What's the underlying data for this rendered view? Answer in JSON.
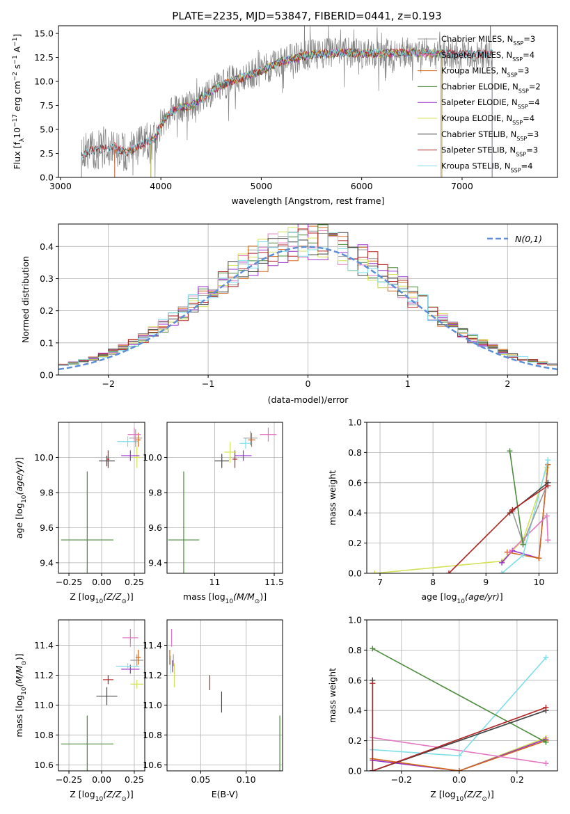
{
  "figure_title": "PLATE=2235, MJD=53847, FIBERID=0441, z=0.193",
  "colors": {
    "Chabrier MILES": "#9a9a9a",
    "Salpeter MILES": "#e377c2",
    "Kroupa MILES": "#d2691e",
    "Chabrier ELODIE": "#4b8b3b",
    "Salpeter ELODIE": "#9932cc",
    "Kroupa ELODIE": "#d4e157",
    "Chabrier STELIB": "#444444",
    "Salpeter STELIB": "#b22222",
    "Kroupa STELIB": "#80deea",
    "normal": "#5b8ed6"
  },
  "chart_data": [
    {
      "id": "spectrum",
      "type": "line",
      "xlabel": "wavelength [Angstrom, rest frame]",
      "ylabel": "Flux [f_λ 10^-17 erg cm^-2 s^-1 A^-1]",
      "xlim": [
        2980,
        7950
      ],
      "ylim": [
        0,
        15.8
      ],
      "xticks": [
        3000,
        4000,
        5000,
        6000,
        7000
      ],
      "yticks": [
        0.0,
        2.5,
        5.0,
        7.5,
        10.0,
        12.5,
        15.0
      ],
      "grid": false,
      "legend_position": "top-right",
      "series": [
        {
          "name": "Chabrier MILES, N_SSP=3",
          "label": "Chabrier MILES",
          "nssp": "3"
        },
        {
          "name": "Salpeter MILES, N_SSP=4",
          "label": "Salpeter MILES",
          "nssp": "4"
        },
        {
          "name": "Kroupa MILES, N_SSP=3",
          "label": "Kroupa MILES",
          "nssp": "3"
        },
        {
          "name": "Chabrier ELODIE, N_SSP=2",
          "label": "Chabrier ELODIE",
          "nssp": "2"
        },
        {
          "name": "Salpeter ELODIE, N_SSP=4",
          "label": "Salpeter ELODIE",
          "nssp": "4"
        },
        {
          "name": "Kroupa ELODIE, N_SSP=4",
          "label": "Kroupa ELODIE",
          "nssp": "4"
        },
        {
          "name": "Chabrier STELIB, N_SSP=3",
          "label": "Chabrier STELIB",
          "nssp": "3"
        },
        {
          "name": "Salpeter STELIB, N_SSP=3",
          "label": "Salpeter STELIB",
          "nssp": "3"
        },
        {
          "name": "Kroupa STELIB, N_SSP=4",
          "label": "Kroupa STELIB",
          "nssp": "4"
        }
      ],
      "continuum": [
        [
          3210,
          2.3
        ],
        [
          3300,
          2.8
        ],
        [
          3450,
          3.0
        ],
        [
          3540,
          3.2
        ],
        [
          3650,
          2.6
        ],
        [
          3750,
          3.1
        ],
        [
          3870,
          3.7
        ],
        [
          3940,
          4.0
        ],
        [
          4000,
          5.5
        ],
        [
          4100,
          6.8
        ],
        [
          4200,
          7.3
        ],
        [
          4300,
          7.4
        ],
        [
          4450,
          8.6
        ],
        [
          4600,
          9.6
        ],
        [
          4800,
          10.4
        ],
        [
          5000,
          11.1
        ],
        [
          5200,
          12.1
        ],
        [
          5500,
          12.8
        ],
        [
          5800,
          13.0
        ],
        [
          6100,
          12.9
        ],
        [
          6400,
          13.0
        ],
        [
          6800,
          12.9
        ],
        [
          7100,
          12.8
        ],
        [
          7300,
          12.9
        ]
      ]
    },
    {
      "id": "residuals",
      "type": "line",
      "xlabel": "(data-model)/error",
      "ylabel": "Normed distribution",
      "xlim": [
        -2.5,
        2.5
      ],
      "ylim": [
        0,
        0.47
      ],
      "xticks": [
        -2,
        -1,
        0,
        1,
        2
      ],
      "yticks": [
        0.0,
        0.1,
        0.2,
        0.3,
        0.4
      ],
      "grid": true,
      "legend_position": "top-right",
      "legend_label": "N(0,1)"
    },
    {
      "id": "age_vs_Z",
      "type": "scatter",
      "xlabel": "Z [log10(Z/Z☉)]",
      "ylabel": "age [log10(age/yr)]",
      "xlim": [
        -0.33,
        0.33
      ],
      "ylim": [
        9.34,
        10.2
      ],
      "xticks": [
        -0.25,
        0.0,
        0.25
      ],
      "xtick_labels": [
        "−0.25",
        "0.00",
        "0.25"
      ],
      "yticks": [
        9.4,
        9.6,
        9.8,
        10.0
      ],
      "grid": true,
      "points": [
        {
          "series": "Chabrier ELODIE",
          "x": -0.11,
          "y": 9.53,
          "xerr": 0.2,
          "yerr": 0.39
        },
        {
          "series": "Chabrier STELIB",
          "x": 0.04,
          "y": 9.98,
          "xerr": 0.06,
          "yerr": 0.03
        },
        {
          "series": "Salpeter STELIB",
          "x": 0.05,
          "y": 9.99,
          "xerr": 0.01,
          "yerr": 0.05
        },
        {
          "series": "Kroupa ELODIE",
          "x": 0.27,
          "y": 10.0,
          "xerr": 0.03,
          "yerr": 0.06
        },
        {
          "series": "Salpeter ELODIE",
          "x": 0.22,
          "y": 10.01,
          "xerr": 0.07,
          "yerr": 0.03
        },
        {
          "series": "Kroupa STELIB",
          "x": 0.2,
          "y": 10.09,
          "xerr": 0.08,
          "yerr": 0.03
        },
        {
          "series": "Chabrier MILES",
          "x": 0.26,
          "y": 10.11,
          "xerr": 0.05,
          "yerr": 0.05
        },
        {
          "series": "Kroupa MILES",
          "x": 0.28,
          "y": 10.1,
          "xerr": 0.02,
          "yerr": 0.04
        },
        {
          "series": "Salpeter MILES",
          "x": 0.25,
          "y": 10.13,
          "xerr": 0.05,
          "yerr": 0.04
        }
      ]
    },
    {
      "id": "age_vs_mass",
      "type": "scatter",
      "xlabel": "mass [log10(M/M☉)]",
      "ylabel": "",
      "xlim": [
        10.6,
        11.57
      ],
      "ylim": [
        9.34,
        10.2
      ],
      "xticks": [
        11.0,
        11.5
      ],
      "yticks": [
        9.4,
        9.6,
        9.8,
        10.0
      ],
      "grid": true,
      "points": [
        {
          "series": "Chabrier ELODIE",
          "x": 10.74,
          "y": 9.53,
          "xerr": 0.13,
          "yerr": 0.39
        },
        {
          "series": "Chabrier STELIB",
          "x": 11.06,
          "y": 9.98,
          "xerr": 0.06,
          "yerr": 0.04
        },
        {
          "series": "Salpeter STELIB",
          "x": 11.17,
          "y": 9.99,
          "xerr": 0.02,
          "yerr": 0.05
        },
        {
          "series": "Kroupa ELODIE",
          "x": 11.13,
          "y": 10.03,
          "xerr": 0.05,
          "yerr": 0.06
        },
        {
          "series": "Salpeter ELODIE",
          "x": 11.24,
          "y": 10.01,
          "xerr": 0.07,
          "yerr": 0.03
        },
        {
          "series": "Kroupa STELIB",
          "x": 11.26,
          "y": 10.08,
          "xerr": 0.05,
          "yerr": 0.03
        },
        {
          "series": "Chabrier MILES",
          "x": 11.3,
          "y": 10.11,
          "xerr": 0.06,
          "yerr": 0.04
        },
        {
          "series": "Kroupa MILES",
          "x": 11.31,
          "y": 10.1,
          "xerr": 0.03,
          "yerr": 0.04
        },
        {
          "series": "Salpeter MILES",
          "x": 11.45,
          "y": 10.13,
          "xerr": 0.07,
          "yerr": 0.04
        }
      ]
    },
    {
      "id": "mw_vs_age",
      "type": "line",
      "xlabel": "age [log10(age/yr)]",
      "ylabel": "mass weight",
      "xlim": [
        6.75,
        10.35
      ],
      "ylim": [
        0,
        1.0
      ],
      "xticks": [
        7,
        8,
        9,
        10
      ],
      "yticks": [
        0.0,
        0.2,
        0.4,
        0.6,
        0.8,
        1.0
      ],
      "grid": true,
      "series": [
        {
          "series": "Kroupa ELODIE",
          "points": [
            [
              6.9,
              0.0
            ],
            [
              9.3,
              0.08
            ],
            [
              9.7,
              0.22
            ],
            [
              10.15,
              0.7
            ]
          ]
        },
        {
          "series": "Salpeter ELODIE",
          "points": [
            [
              9.3,
              0.07
            ],
            [
              9.5,
              0.15
            ],
            [
              10.0,
              0.1
            ],
            [
              10.17,
              0.72
            ]
          ]
        },
        {
          "series": "Kroupa MILES",
          "points": [
            [
              9.4,
              0.14
            ],
            [
              10.0,
              0.1
            ],
            [
              10.17,
              0.72
            ]
          ]
        },
        {
          "series": "Salpeter MILES",
          "points": [
            [
              9.45,
              0.14
            ],
            [
              10.15,
              0.38
            ],
            [
              10.17,
              0.22
            ]
          ]
        },
        {
          "series": "Kroupa STELIB",
          "points": [
            [
              9.3,
              0.0
            ],
            [
              9.7,
              0.12
            ],
            [
              10.17,
              0.75
            ]
          ]
        },
        {
          "series": "Chabrier MILES",
          "points": [
            [
              9.5,
              0.41
            ],
            [
              9.7,
              0.2
            ],
            [
              10.17,
              0.6
            ]
          ]
        },
        {
          "series": "Chabrier ELODIE",
          "points": [
            [
              9.45,
              0.81
            ],
            [
              9.7,
              0.19
            ]
          ]
        },
        {
          "series": "Chabrier STELIB",
          "points": [
            [
              9.45,
              0.4
            ],
            [
              10.17,
              0.6
            ]
          ]
        },
        {
          "series": "Salpeter STELIB",
          "points": [
            [
              8.3,
              0.0
            ],
            [
              9.5,
              0.42
            ],
            [
              10.17,
              0.58
            ]
          ]
        }
      ]
    },
    {
      "id": "mass_vs_Z",
      "type": "scatter",
      "xlabel": "Z [log10(Z/Z☉)]",
      "ylabel": "mass [log10(M/M☉)]",
      "xlim": [
        -0.33,
        0.33
      ],
      "ylim": [
        10.56,
        11.57
      ],
      "xticks": [
        -0.25,
        0.0,
        0.25
      ],
      "xtick_labels": [
        "−0.25",
        "0.00",
        "0.25"
      ],
      "yticks": [
        10.6,
        10.8,
        11.0,
        11.2,
        11.4
      ],
      "grid": true,
      "points": [
        {
          "series": "Chabrier ELODIE",
          "x": -0.11,
          "y": 10.74,
          "xerr": 0.2,
          "yerr": 0.19
        },
        {
          "series": "Chabrier STELIB",
          "x": 0.04,
          "y": 11.06,
          "xerr": 0.08,
          "yerr": 0.06
        },
        {
          "series": "Salpeter STELIB",
          "x": 0.05,
          "y": 11.17,
          "xerr": 0.04,
          "yerr": 0.03
        },
        {
          "series": "Kroupa ELODIE",
          "x": 0.27,
          "y": 11.14,
          "xerr": 0.05,
          "yerr": 0.03
        },
        {
          "series": "Salpeter ELODIE",
          "x": 0.22,
          "y": 11.24,
          "xerr": 0.07,
          "yerr": 0.03
        },
        {
          "series": "Kroupa STELIB",
          "x": 0.2,
          "y": 11.26,
          "xerr": 0.09,
          "yerr": 0.02
        },
        {
          "series": "Chabrier MILES",
          "x": 0.27,
          "y": 11.3,
          "xerr": 0.05,
          "yerr": 0.04
        },
        {
          "series": "Kroupa MILES",
          "x": 0.28,
          "y": 11.32,
          "xerr": 0.02,
          "yerr": 0.05
        },
        {
          "series": "Salpeter MILES",
          "x": 0.22,
          "y": 11.45,
          "xerr": 0.06,
          "yerr": 0.06
        }
      ]
    },
    {
      "id": "mass_vs_ebv",
      "type": "scatter",
      "xlabel": "E(B-V)",
      "ylabel": "",
      "xlim": [
        0.013,
        0.14
      ],
      "ylim": [
        10.56,
        11.57
      ],
      "xticks": [
        0.05,
        0.1
      ],
      "xtick_labels": [
        "0.05",
        "0.10"
      ],
      "yticks": [
        10.6,
        10.8,
        11.0,
        11.2,
        11.4
      ],
      "grid": true,
      "points": [
        {
          "series": "Salpeter MILES",
          "x": 0.018,
          "y": 11.45,
          "yerr": 0.06
        },
        {
          "series": "Kroupa STELIB",
          "x": 0.017,
          "y": 11.27,
          "yerr": 0.06
        },
        {
          "series": "Salpeter ELODIE",
          "x": 0.019,
          "y": 11.26,
          "yerr": 0.04
        },
        {
          "series": "Kroupa MILES",
          "x": 0.016,
          "y": 11.32,
          "yerr": 0.05
        },
        {
          "series": "Kroupa ELODIE",
          "x": 0.021,
          "y": 11.2,
          "yerr": 0.08
        },
        {
          "series": "Chabrier MILES",
          "x": 0.02,
          "y": 11.3,
          "yerr": 0.04
        },
        {
          "series": "Salpeter STELIB",
          "x": 0.06,
          "y": 11.15,
          "yerr": 0.05
        },
        {
          "series": "Chabrier STELIB",
          "x": 0.073,
          "y": 11.02,
          "yerr": 0.07
        },
        {
          "series": "Chabrier ELODIE",
          "x": 0.137,
          "y": 10.74,
          "yerr": 0.19
        }
      ]
    },
    {
      "id": "mw_vs_Z",
      "type": "line",
      "xlabel": "Z [log10(Z/Z☉)]",
      "ylabel": "mass weight",
      "xlim": [
        -0.32,
        0.34
      ],
      "ylim": [
        0,
        1.0
      ],
      "xticks": [
        -0.2,
        0.0,
        0.2
      ],
      "xtick_labels": [
        "−0.2",
        "0.0",
        "0.2"
      ],
      "yticks": [
        0.0,
        0.2,
        0.4,
        0.6,
        0.8,
        1.0
      ],
      "grid": true,
      "series": [
        {
          "series": "Kroupa ELODIE",
          "points": [
            [
              -0.3,
              0.08
            ],
            [
              0.0,
              0.0
            ],
            [
              0.3,
              0.22
            ]
          ]
        },
        {
          "series": "Salpeter ELODIE",
          "points": [
            [
              -0.3,
              0.07
            ],
            [
              0.0,
              0.0
            ],
            [
              0.3,
              0.21
            ]
          ]
        },
        {
          "series": "Kroupa MILES",
          "points": [
            [
              -0.3,
              0.08
            ],
            [
              0.0,
              0.0
            ],
            [
              0.3,
              0.2
            ]
          ]
        },
        {
          "series": "Salpeter MILES",
          "points": [
            [
              -0.3,
              0.22
            ],
            [
              0.3,
              0.05
            ]
          ]
        },
        {
          "series": "Kroupa STELIB",
          "points": [
            [
              -0.3,
              0.14
            ],
            [
              0.0,
              0.1
            ],
            [
              0.3,
              0.75
            ]
          ]
        },
        {
          "series": "Chabrier MILES",
          "points": [
            [
              -0.3,
              0.6
            ],
            [
              -0.3,
              0.0
            ],
            [
              0.3,
              0.4
            ]
          ]
        },
        {
          "series": "Chabrier ELODIE",
          "points": [
            [
              -0.3,
              0.81
            ],
            [
              0.3,
              0.19
            ]
          ]
        },
        {
          "series": "Chabrier STELIB",
          "points": [
            [
              -0.3,
              0.6
            ],
            [
              -0.3,
              0.0
            ],
            [
              0.3,
              0.4
            ]
          ]
        },
        {
          "series": "Salpeter STELIB",
          "points": [
            [
              -0.3,
              0.58
            ],
            [
              -0.3,
              0.0
            ],
            [
              0.3,
              0.42
            ]
          ]
        }
      ]
    }
  ]
}
